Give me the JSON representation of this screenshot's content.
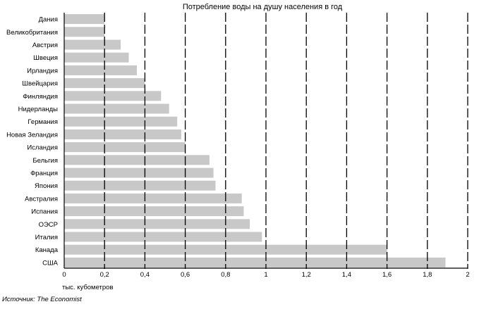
{
  "chart_data": {
    "type": "bar",
    "orientation": "horizontal",
    "title": "Потребление воды на душу населения в год",
    "unit_label": "тыс. кубометров",
    "source": "Источник: The Economist",
    "categories": [
      "Дания",
      "Великобритания",
      "Австрия",
      "Швеция",
      "Ирландия",
      "Швейцария",
      "Финляндия",
      "Нидерланды",
      "Германия",
      "Новая Зеландия",
      "Исландия",
      "Бельгия",
      "Франция",
      "Япония",
      "Австралия",
      "Испания",
      "ОЭСР",
      "Италия",
      "Канада",
      "США"
    ],
    "values": [
      0.2,
      0.2,
      0.28,
      0.32,
      0.36,
      0.4,
      0.48,
      0.52,
      0.56,
      0.58,
      0.6,
      0.72,
      0.74,
      0.75,
      0.88,
      0.89,
      0.92,
      0.98,
      1.6,
      1.89
    ],
    "xlim": [
      0,
      2
    ],
    "x_ticks": [
      0,
      0.2,
      0.4,
      0.6,
      0.8,
      1,
      1.2,
      1.4,
      1.6,
      1.8,
      2
    ],
    "x_tick_labels": [
      "0",
      "0,2",
      "0,4",
      "0,6",
      "0,8",
      "1",
      "1,2",
      "1,4",
      "1,6",
      "1,8",
      "2"
    ],
    "grid": true,
    "bar_color": "#c8c8c8"
  }
}
